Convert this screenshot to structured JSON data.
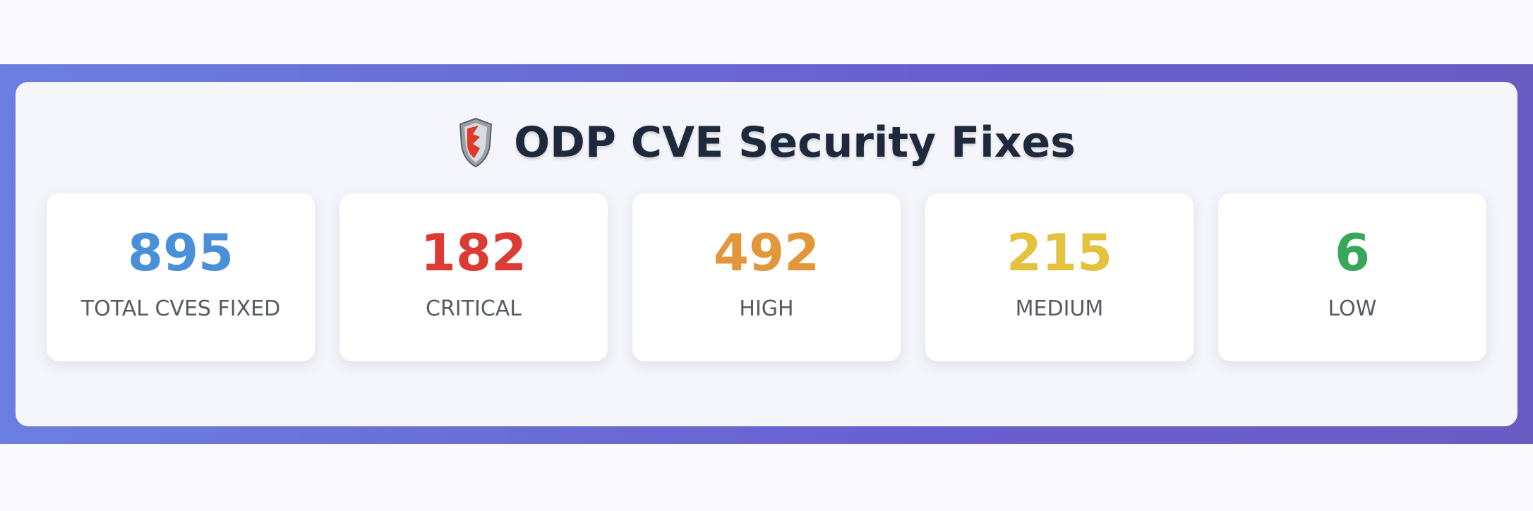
{
  "header": {
    "title": "ODP CVE Security Fixes"
  },
  "stats": [
    {
      "value": "895",
      "label": "TOTAL CVES FIXED"
    },
    {
      "value": "182",
      "label": "CRITICAL"
    },
    {
      "value": "492",
      "label": "HIGH"
    },
    {
      "value": "215",
      "label": "MEDIUM"
    },
    {
      "value": "6",
      "label": "LOW"
    }
  ]
}
